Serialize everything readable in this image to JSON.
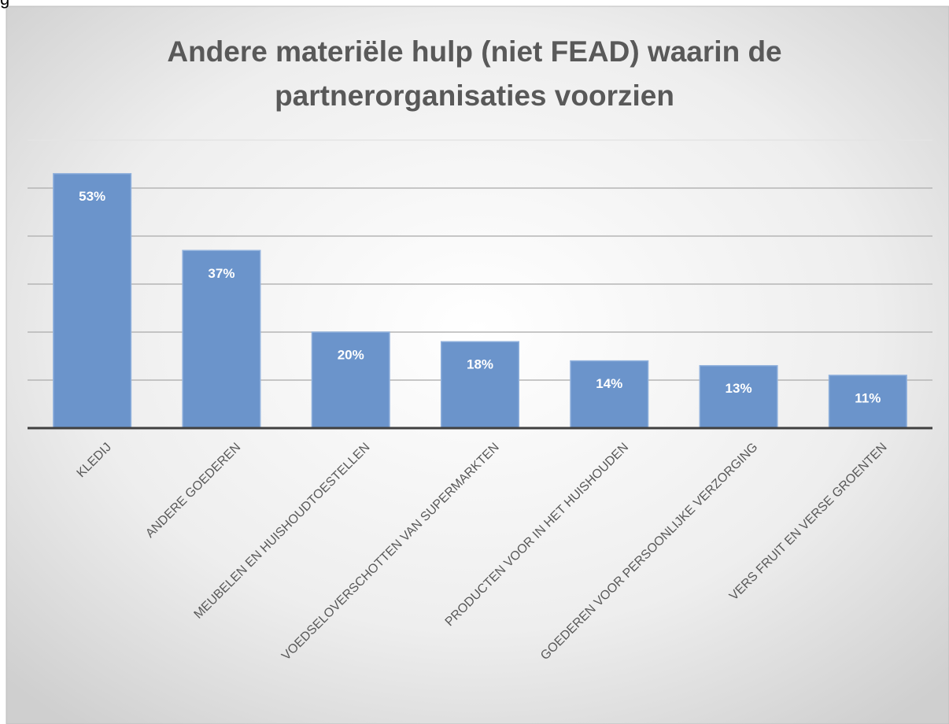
{
  "annotation": "g",
  "chart_data": {
    "type": "bar",
    "title": "Andere materiële hulp (niet FEAD) waarin de partnerorganisaties voorzien",
    "categories": [
      "KLEDIJ",
      "ANDERE GOEDEREN",
      "MEUBELEN EN HUISHOUDTOESTELLEN",
      "VOEDSELOVERSCHOTTEN VAN SUPERMARKTEN",
      "PRODUCTEN VOOR IN HET HUISHOUDEN",
      "GOEDEREN VOOR PERSOONLIJKE VERZORGING",
      "VERS FRUIT EN VERSE GROENTEN"
    ],
    "values": [
      53,
      37,
      20,
      18,
      14,
      13,
      11
    ],
    "value_labels": [
      "53%",
      "37%",
      "20%",
      "18%",
      "14%",
      "13%",
      "11%"
    ],
    "color": "#6b94cb",
    "ylim": [
      0,
      60
    ],
    "yticks": [
      0,
      10,
      20,
      30,
      40,
      50,
      60
    ],
    "grid": true
  }
}
